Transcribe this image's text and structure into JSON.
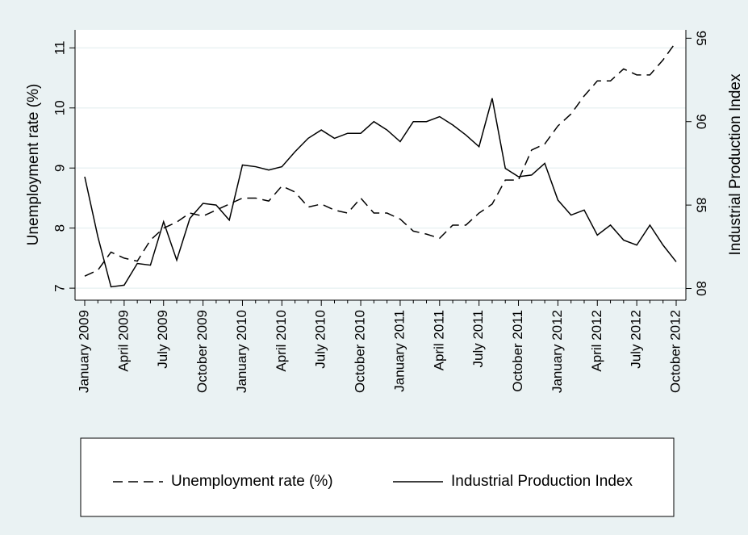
{
  "chart_data": {
    "type": "line",
    "categories": [
      "January 2009",
      null,
      null,
      "April 2009",
      null,
      null,
      "July 2009",
      null,
      null,
      "October 2009",
      null,
      null,
      "January 2010",
      null,
      null,
      "April 2010",
      null,
      null,
      "July 2010",
      null,
      null,
      "October 2010",
      null,
      null,
      "January 2011",
      null,
      null,
      "April 2011",
      null,
      null,
      "July 2011",
      null,
      null,
      "October 2011",
      null,
      null,
      "January 2012",
      null,
      null,
      "April 2012",
      null,
      null,
      "July 2012",
      null,
      null,
      "October 2012"
    ],
    "series": [
      {
        "name": "Unemployment rate (%)",
        "color": "#000000",
        "style": "dashed",
        "values": [
          7.2,
          7.3,
          7.6,
          7.5,
          7.45,
          7.8,
          8.0,
          8.1,
          8.25,
          8.2,
          8.3,
          8.4,
          8.5,
          8.5,
          8.45,
          8.7,
          8.6,
          8.35,
          8.4,
          8.3,
          8.25,
          8.5,
          8.25,
          8.25,
          8.15,
          7.95,
          7.9,
          7.83,
          8.05,
          8.05,
          8.25,
          8.4,
          8.8,
          8.8,
          9.3,
          9.4,
          9.7,
          9.9,
          10.2,
          10.45,
          10.45,
          10.65,
          10.55,
          10.55,
          10.8,
          11.1
        ]
      },
      {
        "name": "Industrial Production Index",
        "color": "#000000",
        "style": "solid",
        "axis": "y2",
        "values": [
          86.7,
          83.1,
          80.1,
          80.2,
          81.5,
          81.4,
          84.0,
          81.7,
          84.2,
          85.1,
          85.0,
          84.1,
          87.4,
          87.3,
          87.1,
          87.3,
          88.2,
          89.0,
          89.5,
          89.0,
          89.3,
          89.3,
          90.0,
          89.5,
          88.8,
          90.0,
          90.0,
          90.3,
          89.8,
          89.2,
          88.5,
          91.4,
          87.2,
          86.7,
          86.8,
          87.5,
          85.3,
          84.4,
          84.7,
          83.2,
          83.8,
          82.9,
          82.6,
          83.8,
          82.6,
          81.6
        ]
      }
    ],
    "ylabel": "Unemployment rate (%)",
    "y2label": "Industrial Production Index",
    "ylim": [
      6.8,
      11.3
    ],
    "yticks": [
      7,
      8,
      9,
      10,
      11
    ],
    "y2lim": [
      79.3,
      95.5
    ],
    "y2ticks": [
      80,
      85,
      90,
      95
    ],
    "grid": true,
    "legend": "bottom"
  }
}
